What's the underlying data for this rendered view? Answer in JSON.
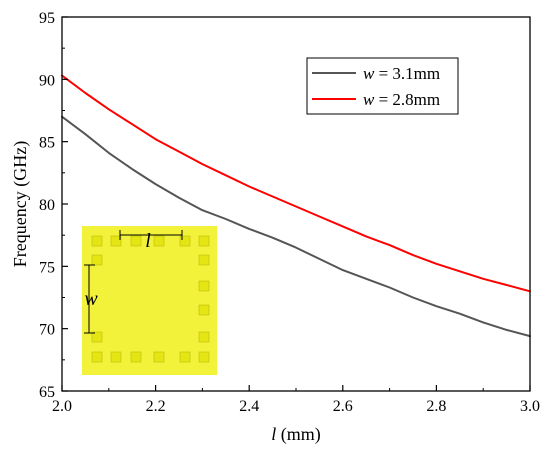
{
  "chart_data": {
    "type": "line",
    "xlabel": {
      "var": "l",
      "unit": " (mm)"
    },
    "ylabel": "Frequency (GHz)",
    "xlim": [
      2.0,
      3.0
    ],
    "ylim": [
      65,
      95
    ],
    "x_ticks": [
      "2.0",
      "2.2",
      "2.4",
      "2.6",
      "2.8",
      "3.0"
    ],
    "y_ticks": [
      "65",
      "70",
      "75",
      "80",
      "85",
      "90",
      "95"
    ],
    "legend_position": "top-right",
    "grid": false,
    "series": [
      {
        "name": {
          "var": "w",
          "rest": " = 3.1mm"
        },
        "color": "#555555",
        "x": [
          2.0,
          2.05,
          2.1,
          2.15,
          2.2,
          2.25,
          2.3,
          2.35,
          2.4,
          2.45,
          2.5,
          2.55,
          2.6,
          2.65,
          2.7,
          2.75,
          2.8,
          2.85,
          2.9,
          2.95,
          3.0
        ],
        "y": [
          87.0,
          85.6,
          84.1,
          82.8,
          81.6,
          80.5,
          79.5,
          78.8,
          78.0,
          77.3,
          76.5,
          75.6,
          74.7,
          74.0,
          73.3,
          72.5,
          71.8,
          71.2,
          70.5,
          69.9,
          69.4
        ]
      },
      {
        "name": {
          "var": "w",
          "rest": " = 2.8mm"
        },
        "color": "#ff0000",
        "x": [
          2.0,
          2.05,
          2.1,
          2.15,
          2.2,
          2.25,
          2.3,
          2.35,
          2.4,
          2.45,
          2.5,
          2.55,
          2.6,
          2.65,
          2.7,
          2.75,
          2.8,
          2.85,
          2.9,
          2.95,
          3.0
        ],
        "y": [
          90.3,
          88.9,
          87.6,
          86.4,
          85.2,
          84.2,
          83.2,
          82.3,
          81.4,
          80.6,
          79.8,
          79.0,
          78.2,
          77.4,
          76.7,
          75.9,
          75.2,
          74.6,
          74.0,
          73.5,
          73.0
        ]
      }
    ],
    "inset": {
      "labels": {
        "length": "l",
        "width": "w"
      },
      "colors": {
        "background": "#f2f23a",
        "square": "#e5e513",
        "square_border": "#bcbc10",
        "marker": "#000000"
      }
    }
  }
}
